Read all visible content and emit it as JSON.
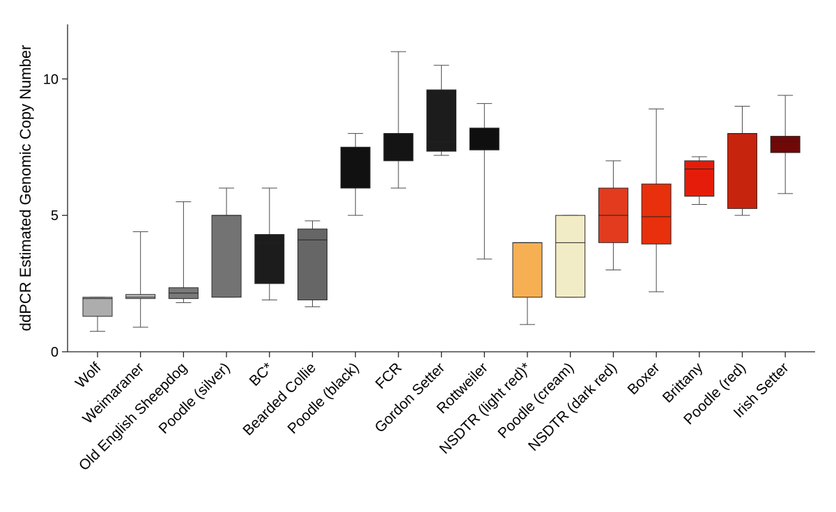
{
  "chart_data": {
    "type": "box",
    "title": "",
    "xlabel": "",
    "ylabel": "ddPCR Estimated Genomic Copy Number",
    "ylim": [
      0,
      12
    ],
    "yticks": [
      0,
      5,
      10
    ],
    "grid": false,
    "categories": [
      "Wolf",
      "Weimaraner",
      "Old English Sheepdog",
      "Poodle (silver)",
      "BC*",
      "Bearded Collie",
      "Poodle (black)",
      "FCR",
      "Gordon Setter",
      "Rottweiler",
      "NSDTR (light red)*",
      "Poodle (cream)",
      "NSDTR (dark red)",
      "Boxer",
      "Brittany",
      "Poodle (red)",
      "Irish Setter"
    ],
    "boxes": [
      {
        "name": "Wolf",
        "min": 0.75,
        "q1": 1.3,
        "median": 1.95,
        "q3": 2.0,
        "max": 2.0,
        "color": "#adadad"
      },
      {
        "name": "Weimaraner",
        "min": 0.9,
        "q1": 1.95,
        "median": 2.0,
        "q3": 2.1,
        "max": 4.4,
        "color": "#b8b8b8"
      },
      {
        "name": "Old English Sheepdog",
        "min": 1.8,
        "q1": 1.95,
        "median": 2.15,
        "q3": 2.35,
        "max": 5.5,
        "color": "#7a7a7a"
      },
      {
        "name": "Poodle (silver)",
        "min": 2.0,
        "q1": 2.0,
        "median": 5.0,
        "q3": 5.0,
        "max": 6.0,
        "color": "#737373"
      },
      {
        "name": "BC*",
        "min": 1.9,
        "q1": 2.5,
        "median": 4.0,
        "q3": 4.3,
        "max": 6.0,
        "color": "#1c1c1c"
      },
      {
        "name": "Bearded Collie",
        "min": 1.65,
        "q1": 1.9,
        "median": 4.1,
        "q3": 4.5,
        "max": 4.8,
        "color": "#666666"
      },
      {
        "name": "Poodle (black)",
        "min": 5.0,
        "q1": 6.0,
        "median": 6.0,
        "q3": 7.5,
        "max": 8.0,
        "color": "#111111"
      },
      {
        "name": "FCR",
        "min": 6.0,
        "q1": 7.0,
        "median": 8.0,
        "q3": 8.0,
        "max": 11.0,
        "color": "#141414"
      },
      {
        "name": "Gordon Setter",
        "min": 7.2,
        "q1": 7.35,
        "median": 7.7,
        "q3": 9.6,
        "max": 10.5,
        "color": "#1c1c1c"
      },
      {
        "name": "Rottweiler",
        "min": 3.4,
        "q1": 7.4,
        "median": 7.4,
        "q3": 8.2,
        "max": 9.1,
        "color": "#0f0f0f"
      },
      {
        "name": "NSDTR (light red)*",
        "min": 1.0,
        "q1": 2.0,
        "median": 4.0,
        "q3": 4.0,
        "max": 4.0,
        "color": "#f6b053"
      },
      {
        "name": "Poodle (cream)",
        "min": 2.0,
        "q1": 2.0,
        "median": 4.0,
        "q3": 5.0,
        "max": 5.0,
        "color": "#f2ecc6"
      },
      {
        "name": "NSDTR (dark red)",
        "min": 3.0,
        "q1": 4.0,
        "median": 5.0,
        "q3": 6.0,
        "max": 7.0,
        "color": "#e33b1e"
      },
      {
        "name": "Boxer",
        "min": 2.2,
        "q1": 3.95,
        "median": 4.95,
        "q3": 6.15,
        "max": 8.9,
        "color": "#e8300c"
      },
      {
        "name": "Brittany",
        "min": 5.4,
        "q1": 5.7,
        "median": 6.7,
        "q3": 7.0,
        "max": 7.15,
        "color": "#e61c0a"
      },
      {
        "name": "Poodle (red)",
        "min": 5.0,
        "q1": 5.25,
        "median": 8.0,
        "q3": 8.0,
        "max": 9.0,
        "color": "#c7240e"
      },
      {
        "name": "Irish Setter",
        "min": 5.8,
        "q1": 7.3,
        "median": 7.7,
        "q3": 7.9,
        "max": 9.4,
        "color": "#710808"
      }
    ]
  }
}
